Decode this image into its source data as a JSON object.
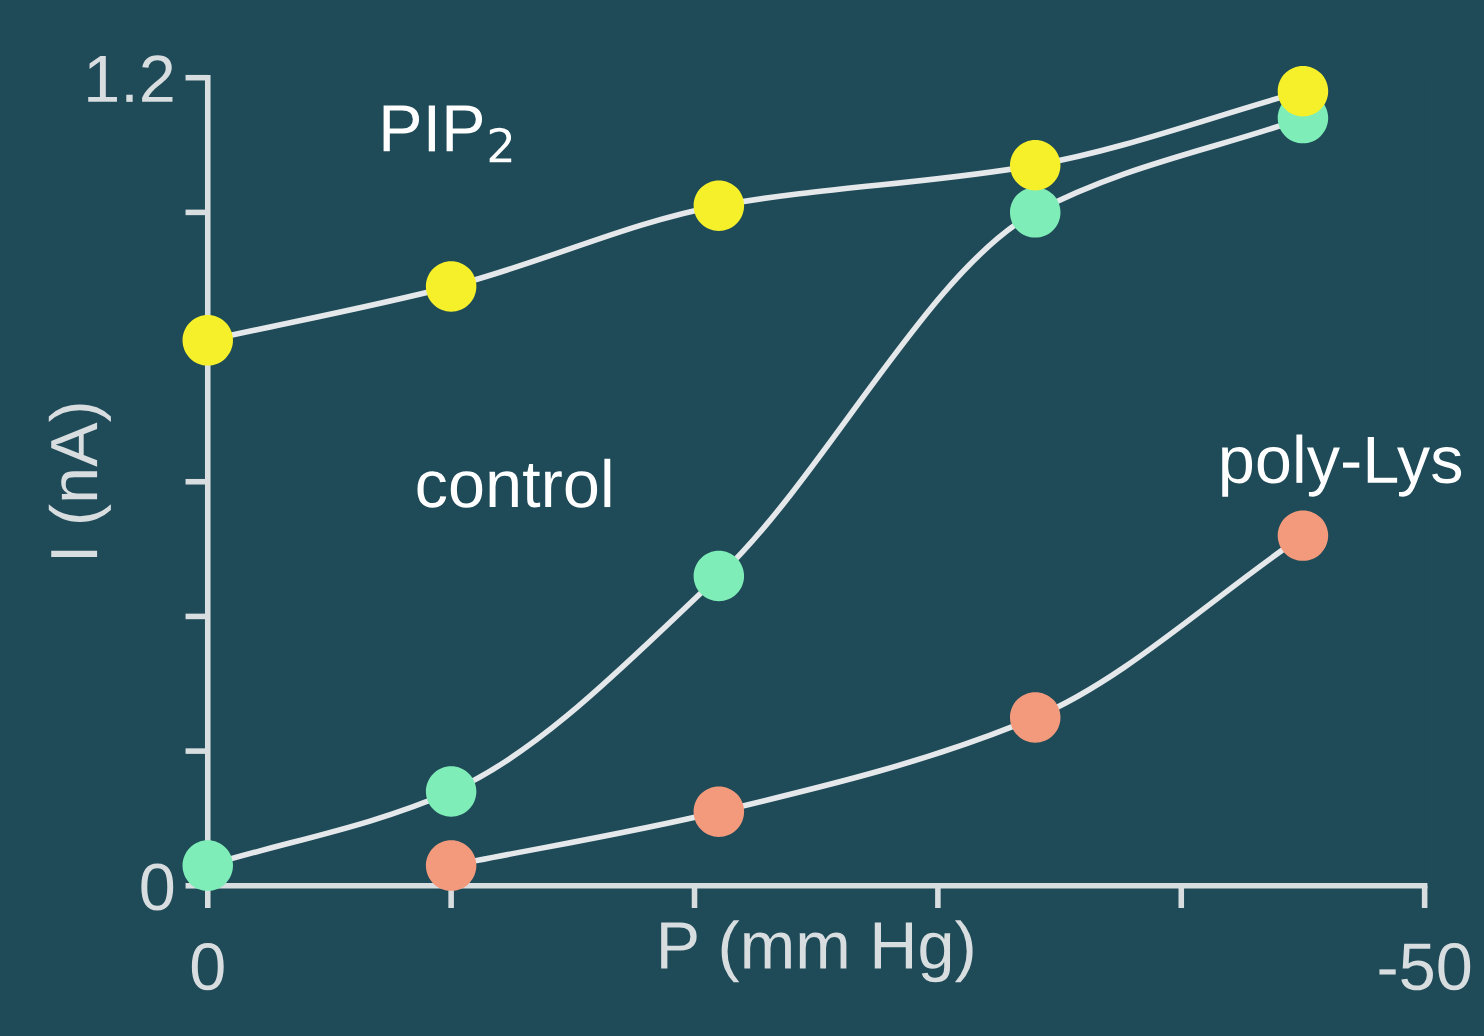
{
  "chart_data": {
    "type": "line",
    "xlabel": "P (mm Hg)",
    "ylabel": "I (nA)",
    "x": [
      0,
      -10,
      -21,
      -34,
      -45
    ],
    "xlim": [
      0,
      -50
    ],
    "xticks": [
      0,
      {
        "value": -10,
        "label": null
      },
      {
        "value": -20,
        "label": null
      },
      {
        "value": -30,
        "label": null
      },
      {
        "value": -40,
        "label": null
      },
      -50
    ],
    "ylim": [
      0,
      1.2
    ],
    "yticks": [
      0,
      {
        "value": 0.2,
        "label": null
      },
      {
        "value": 0.4,
        "label": null
      },
      {
        "value": 0.6,
        "label": null
      },
      {
        "value": 0.8,
        "label": null
      },
      {
        "value": 1.0,
        "label": null
      },
      1.2
    ],
    "grid": false,
    "legend": false,
    "marker": "circle",
    "line_style": "solid",
    "series": [
      {
        "name": "poly-Lys",
        "color": "#f49a7c",
        "values": [
          null,
          0.03,
          0.11,
          0.25,
          0.52
        ]
      },
      {
        "name": "control",
        "color": "#7fedb8",
        "values": [
          0.03,
          0.14,
          0.46,
          1.0,
          1.14
        ]
      },
      {
        "name": "PIP$_{2}$",
        "color": "#f5f02a",
        "values": [
          0.81,
          0.89,
          1.01,
          1.07,
          1.18
        ]
      }
    ]
  }
}
